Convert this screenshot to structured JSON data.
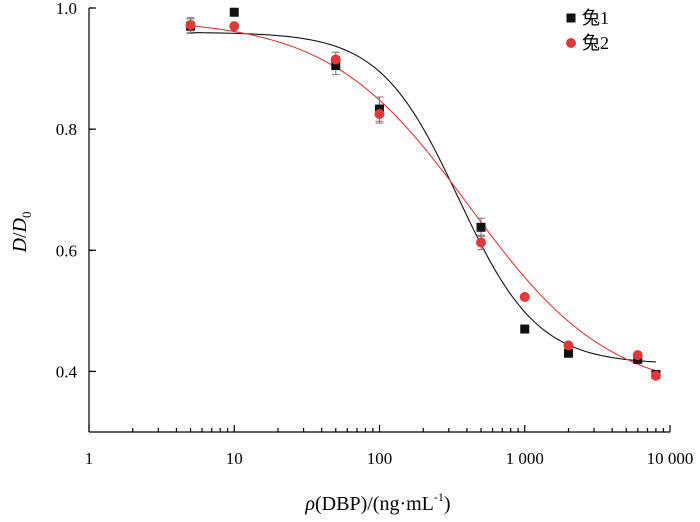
{
  "chart_data": {
    "type": "scatter",
    "title": "",
    "xlabel": {
      "prefix": "ρ",
      "text": "(DBP)/(ng·mL",
      "sup": "-1",
      "suffix": ")"
    },
    "ylabel": {
      "main": "D",
      "slash": "/",
      "den": "D",
      "sub": "0"
    },
    "xscale": "log",
    "xlim": [
      1,
      10000
    ],
    "ylim": [
      0.3,
      1.0
    ],
    "x_ticks": [
      1,
      10,
      100,
      1000,
      10000
    ],
    "x_tick_labels": [
      "1",
      "10",
      "100",
      "1 000",
      "10 000"
    ],
    "y_ticks": [
      0.4,
      0.6,
      0.8,
      1.0
    ],
    "y_tick_labels": [
      "0.4",
      "0.6",
      "0.8",
      "1.0"
    ],
    "legend_position": "top-right",
    "series": [
      {
        "name": "兔1",
        "marker": "square",
        "color": "#111111",
        "line_color": "#111111",
        "x": [
          5,
          10,
          50,
          100,
          500,
          1000,
          2000,
          6000,
          8000
        ],
        "y": [
          0.97,
          0.993,
          0.905,
          0.833,
          0.638,
          0.47,
          0.43,
          0.42,
          0.395
        ],
        "err": [
          0.012,
          0,
          0.015,
          0.02,
          0.015,
          0,
          0,
          0,
          0
        ],
        "fit": {
          "top": 0.96,
          "bottom": 0.412,
          "ec50": 350,
          "hill": 1.6
        }
      },
      {
        "name": "兔2",
        "marker": "circle",
        "color": "#e0393a",
        "line_color": "#e0393a",
        "x": [
          5,
          10,
          50,
          100,
          500,
          1000,
          2000,
          6000,
          8000
        ],
        "y": [
          0.972,
          0.97,
          0.915,
          0.825,
          0.613,
          0.523,
          0.443,
          0.427,
          0.393
        ],
        "err": [
          0.012,
          0,
          0.012,
          0.015,
          0.012,
          0,
          0,
          0,
          0
        ],
        "fit": {
          "top": 0.982,
          "bottom": 0.36,
          "ec50": 420,
          "hill": 0.9
        }
      }
    ]
  }
}
